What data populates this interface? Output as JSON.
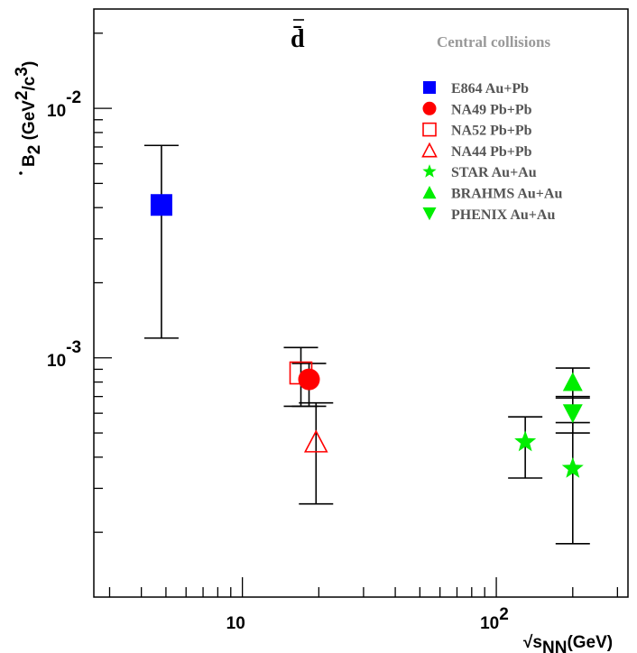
{
  "chart_data": {
    "type": "scatter",
    "title": "d̄",
    "legend_header": "Central collisions",
    "legend_position": "top-right",
    "xlabel": {
      "base": "√s",
      "sub": "NN",
      "suffix": "(GeV)"
    },
    "ylabel": {
      "b": "B",
      "sub": "2",
      "unit_open": "(GeV",
      "sup1": "2",
      "slash": "/c",
      "sup2": "3",
      "unit_close": ")"
    },
    "x_scale": "log",
    "y_scale": "log",
    "xlim": [
      2.6,
      330
    ],
    "ylim": [
      0.00011,
      0.025
    ],
    "x_ticks": [
      {
        "base": "10",
        "exp": ""
      },
      {
        "base": "10",
        "exp": "2"
      }
    ],
    "y_ticks": [
      {
        "base": "10",
        "exp": "-3"
      },
      {
        "base": "10",
        "exp": "-2"
      }
    ],
    "series": [
      {
        "name": "E864 Au+Pb",
        "color": "#0000ff",
        "marker": "square-filled",
        "legend_index": 0,
        "points": [
          {
            "x": 4.8,
            "y": 0.0041,
            "ylo": 0.0012,
            "yhi": 0.0071
          }
        ]
      },
      {
        "name": "NA49 Pb+Pb",
        "color": "#ff0000",
        "marker": "circle-filled",
        "legend_index": 1,
        "points": [
          {
            "x": 18.3,
            "y": 0.00082,
            "ylo": 0.00064,
            "yhi": 0.00095
          }
        ]
      },
      {
        "name": "NA52 Pb+Pb",
        "color": "#ff0000",
        "marker": "square-open",
        "legend_index": 2,
        "points": [
          {
            "x": 17.0,
            "y": 0.00087,
            "ylo": 0.00064,
            "yhi": 0.0011
          }
        ]
      },
      {
        "name": "NA44 Pb+Pb",
        "color": "#ff0000",
        "marker": "triangle-up-open",
        "legend_index": 3,
        "points": [
          {
            "x": 19.5,
            "y": 0.00046,
            "ylo": 0.00026,
            "yhi": 0.00066
          }
        ]
      },
      {
        "name": "STAR Au+Au",
        "color": "#00ee00",
        "marker": "star",
        "legend_index": 4,
        "points": [
          {
            "x": 130,
            "y": 0.00046,
            "ylo": 0.00033,
            "yhi": 0.00058
          },
          {
            "x": 200,
            "y": 0.00036,
            "ylo": 0.00018,
            "yhi": 0.00055
          }
        ]
      },
      {
        "name": "BRAHMS Au+Au",
        "color": "#00ee00",
        "marker": "triangle-up-filled",
        "legend_index": 5,
        "points": [
          {
            "x": 200,
            "y": 0.0008,
            "ylo": 0.00069,
            "yhi": 0.00091
          }
        ]
      },
      {
        "name": "PHENIX Au+Au",
        "color": "#00ee00",
        "marker": "triangle-down-filled",
        "legend_index": 6,
        "points": [
          {
            "x": 200,
            "y": 0.0006,
            "ylo": 0.0005,
            "yhi": 0.0007
          }
        ]
      }
    ]
  }
}
